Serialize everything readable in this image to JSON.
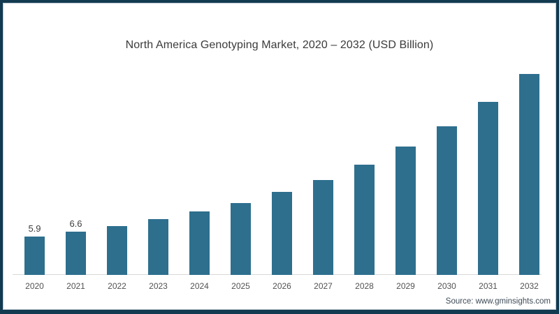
{
  "page": {
    "background": "#ffffff",
    "frame_border_color": "#123a50",
    "frame_inner_line_color": "#b9c7cf"
  },
  "chart_data": {
    "type": "bar",
    "title": "North America Genotyping Market, 2020 – 2032 (USD Billion)",
    "categories": [
      "2020",
      "2021",
      "2022",
      "2023",
      "2024",
      "2025",
      "2026",
      "2027",
      "2028",
      "2029",
      "2030",
      "2031",
      "2032"
    ],
    "values": [
      5.9,
      6.6,
      7.5,
      8.5,
      9.7,
      11.0,
      12.7,
      14.5,
      16.8,
      19.6,
      22.7,
      26.4,
      30.6
    ],
    "value_labels": [
      "5.9",
      "6.6",
      "",
      "",
      "",
      "",
      "",
      "",
      "",
      "",
      "",
      "",
      ""
    ],
    "xlabel": "",
    "ylabel": "",
    "ylim": [
      0,
      32
    ],
    "grid": false,
    "legend_position": "none",
    "bar_color": "#2e6f8e",
    "axis_line_color": "#d8d8d8",
    "title_color": "#3b3b3b",
    "tick_label_color": "#525252",
    "value_label_color": "#3d3d3d"
  },
  "source": {
    "label": "Source: www.gminsights.com"
  }
}
